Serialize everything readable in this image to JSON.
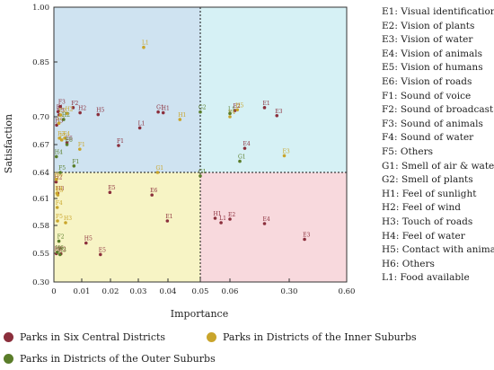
{
  "chart_data": {
    "type": "scatter",
    "title": "",
    "xlabel": "Importance",
    "ylabel": "Satisfaction",
    "x_ticks": [
      "0",
      "0.01",
      "0.02",
      "0.03",
      "0.04",
      "0.05",
      "0.06",
      "0.30",
      "0.60"
    ],
    "y_ticks": [
      "0.30",
      "0.55",
      "0.58",
      "0.61",
      "0.64",
      "0.67",
      "0.70",
      "0.85",
      "1.00"
    ],
    "x_ticks_val": [
      0,
      0.01,
      0.02,
      0.03,
      0.04,
      0.05,
      0.06,
      0.3,
      0.6
    ],
    "y_ticks_val": [
      0.3,
      0.55,
      0.58,
      0.61,
      0.64,
      0.67,
      0.7,
      0.85,
      1.0
    ],
    "threshold": {
      "x": 0.05,
      "y": 0.64
    },
    "quadrant_colors": {
      "top_left": "#cfe3f1",
      "top_right": "#d6f1f5",
      "bottom_left": "#f7f4c5",
      "bottom_right": "#f8d9dd"
    },
    "key": [
      {
        "code": "E1",
        "label": "Visual identification"
      },
      {
        "code": "E2",
        "label": "Vision of plants"
      },
      {
        "code": "E3",
        "label": "Vision of water"
      },
      {
        "code": "E4",
        "label": "Vision of animals"
      },
      {
        "code": "E5",
        "label": "Vision of humans"
      },
      {
        "code": "E6",
        "label": "Vision of roads"
      },
      {
        "code": "F1",
        "label": "Sound of voice"
      },
      {
        "code": "F2",
        "label": "Sound of broadcast"
      },
      {
        "code": "F3",
        "label": "Sound of animals"
      },
      {
        "code": "F4",
        "label": "Sound of water"
      },
      {
        "code": "F5",
        "label": "Others"
      },
      {
        "code": "G1",
        "label": "Smell of air & water"
      },
      {
        "code": "G2",
        "label": "Smell of plants"
      },
      {
        "code": "H1",
        "label": "Feel of sunlight"
      },
      {
        "code": "H2",
        "label": "Feel of wind"
      },
      {
        "code": "H3",
        "label": "Touch of roads"
      },
      {
        "code": "H4",
        "label": "Feel of water"
      },
      {
        "code": "H5",
        "label": "Contact with animals"
      },
      {
        "code": "H6",
        "label": "Others"
      },
      {
        "code": "L1",
        "label": "Food available"
      }
    ],
    "series": [
      {
        "name": "Parks in Six Central Districts",
        "color": "#8b2f3c",
        "points": [
          {
            "label": "E1",
            "x": 0.2,
            "y": 0.725
          },
          {
            "label": "E2",
            "x": 0.08,
            "y": 0.717
          },
          {
            "label": "E3",
            "x": 0.25,
            "y": 0.703
          },
          {
            "label": "E4",
            "x": 0.12,
            "y": 0.666
          },
          {
            "label": "E5",
            "x": 0.0198,
            "y": 0.617
          },
          {
            "label": "E6",
            "x": 0.0346,
            "y": 0.614
          },
          {
            "label": "F1",
            "x": 0.0229,
            "y": 0.669
          },
          {
            "label": "F2",
            "x": 0.0069,
            "y": 0.725
          },
          {
            "label": "F3",
            "x": 0.0022,
            "y": 0.728
          },
          {
            "label": "G1",
            "x": 0.0367,
            "y": 0.713
          },
          {
            "label": "H1",
            "x": 0.0384,
            "y": 0.711
          },
          {
            "label": "H2",
            "x": 0.0094,
            "y": 0.711
          },
          {
            "label": "H3",
            "x": 0.001,
            "y": 0.691
          },
          {
            "label": "H5",
            "x": 0.0157,
            "y": 0.706
          },
          {
            "label": "L1",
            "x": 0.0305,
            "y": 0.688
          },
          {
            "label": "E1",
            "x": 0.0398,
            "y": 0.585
          },
          {
            "label": "E2",
            "x": 0.06,
            "y": 0.587
          },
          {
            "label": "E3",
            "x": 0.38,
            "y": 0.565
          },
          {
            "label": "E4",
            "x": 0.2,
            "y": 0.582
          },
          {
            "label": "E5",
            "x": 0.0165,
            "y": 0.539
          },
          {
            "label": "E6",
            "x": 0.0047,
            "y": 0.672
          },
          {
            "label": "F1",
            "x": 0.0015,
            "y": 0.714
          },
          {
            "label": "F2",
            "x": 0.0025,
            "y": 0.545
          },
          {
            "label": "F3",
            "x": 0.0019,
            "y": 0.705
          },
          {
            "label": "H1",
            "x": 0.055,
            "y": 0.588
          },
          {
            "label": "H2",
            "x": 0.0008,
            "y": 0.629
          },
          {
            "label": "H3",
            "x": 0.0014,
            "y": 0.616
          },
          {
            "label": "H5",
            "x": 0.0115,
            "y": 0.561
          },
          {
            "label": "H6",
            "x": 0.0009,
            "y": 0.547
          },
          {
            "label": "L1",
            "x": 0.057,
            "y": 0.583
          }
        ]
      },
      {
        "name": "Parks in Districts of the Inner Suburbs",
        "color": "#c9a52c",
        "points": [
          {
            "label": "E2",
            "x": 0.0024,
            "y": 0.705
          },
          {
            "label": "E4",
            "x": 0.06,
            "y": 0.7
          },
          {
            "label": "F1",
            "x": 0.0093,
            "y": 0.665
          },
          {
            "label": "F3",
            "x": 0.002,
            "y": 0.677
          },
          {
            "label": "F4",
            "x": 0.0039,
            "y": 0.677
          },
          {
            "label": "F5",
            "x": 0.0028,
            "y": 0.675
          },
          {
            "label": "G1",
            "x": 0.0365,
            "y": 0.64
          },
          {
            "label": "G2",
            "x": 0.0018,
            "y": 0.693
          },
          {
            "label": "H1",
            "x": 0.0437,
            "y": 0.697
          },
          {
            "label": "H2",
            "x": 0.0047,
            "y": 0.709
          },
          {
            "label": "H6",
            "x": 0.0009,
            "y": 0.632
          },
          {
            "label": "L1",
            "x": 0.0318,
            "y": 0.89
          },
          {
            "label": "E3",
            "x": 0.28,
            "y": 0.658
          },
          {
            "label": "F3",
            "x": 0.0011,
            "y": 0.616
          },
          {
            "label": "H3",
            "x": 0.0042,
            "y": 0.583
          },
          {
            "label": "H5",
            "x": 0.09,
            "y": 0.719
          },
          {
            "label": "E5",
            "x": 0.0014,
            "y": 0.614
          },
          {
            "label": "F4",
            "x": 0.0012,
            "y": 0.6
          },
          {
            "label": "F5",
            "x": 0.0013,
            "y": 0.585
          }
        ]
      },
      {
        "name": "Parks in Districts of the Outer Suburbs",
        "color": "#5a7d2a",
        "points": [
          {
            "label": "E6",
            "x": 0.0047,
            "y": 0.67
          },
          {
            "label": "F1",
            "x": 0.0072,
            "y": 0.647
          },
          {
            "label": "F2",
            "x": 0.0018,
            "y": 0.563
          },
          {
            "label": "G1",
            "x": 0.05,
            "y": 0.636
          },
          {
            "label": "G1",
            "x": 0.1,
            "y": 0.652
          },
          {
            "label": "G2",
            "x": 0.05,
            "y": 0.713
          },
          {
            "label": "H2",
            "x": 0.0035,
            "y": 0.697
          },
          {
            "label": "H3",
            "x": 0.0022,
            "y": 0.539
          },
          {
            "label": "H4",
            "x": 0.0009,
            "y": 0.657
          },
          {
            "label": "H6",
            "x": 0.0012,
            "y": 0.551
          },
          {
            "label": "L1",
            "x": 0.06,
            "y": 0.709
          },
          {
            "label": "F5",
            "x": 0.0023,
            "y": 0.64
          }
        ]
      }
    ]
  }
}
